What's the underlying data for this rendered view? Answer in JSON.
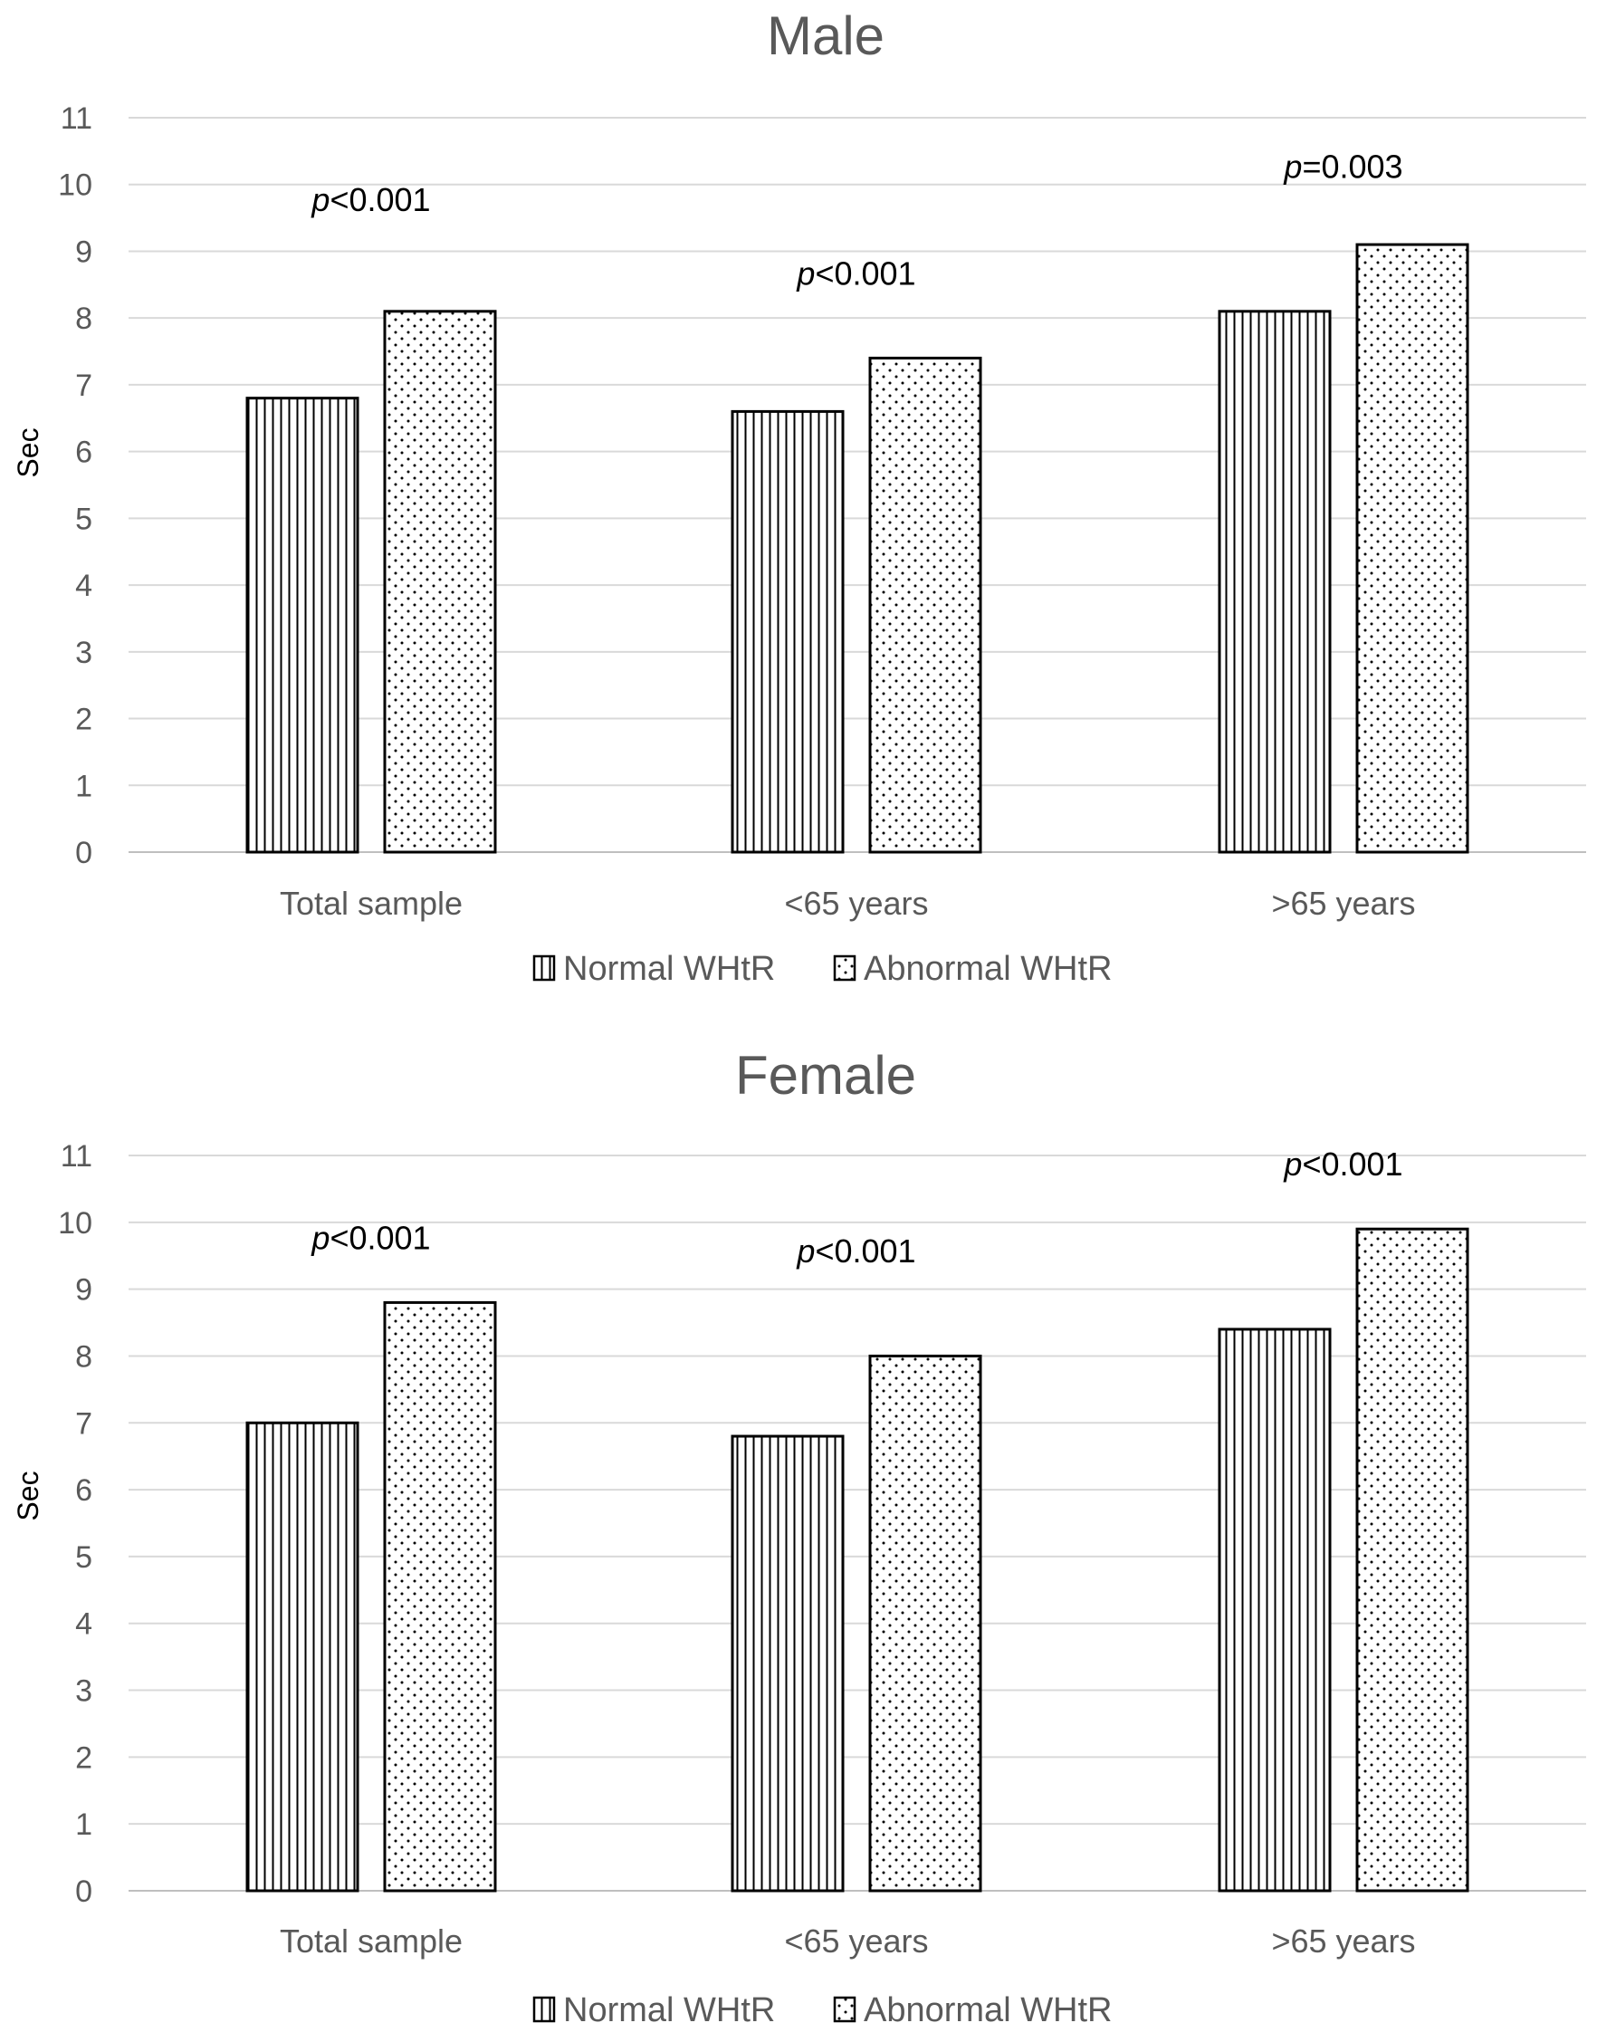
{
  "chart_data": [
    {
      "type": "bar",
      "title": "Male",
      "ylabel": "Sec",
      "xlabel": "",
      "ylim": [
        0,
        11
      ],
      "yticks": [
        0,
        1,
        2,
        3,
        4,
        5,
        6,
        7,
        8,
        9,
        10,
        11
      ],
      "grid": true,
      "legend_position": "bottom",
      "categories": [
        "Total sample",
        "<65 years",
        ">65 years"
      ],
      "series": [
        {
          "name": "Normal WHtR",
          "pattern": "vertical-lines",
          "values": [
            6.8,
            6.6,
            8.1
          ]
        },
        {
          "name": "Abnormal WHtR",
          "pattern": "dots",
          "values": [
            8.1,
            7.4,
            9.1
          ]
        }
      ],
      "annotations": [
        {
          "category": "Total sample",
          "italic": "p",
          "rest": "<0.001",
          "y": 9.6
        },
        {
          "category": "<65 years",
          "italic": "p",
          "rest": "<0.001",
          "y": 8.5
        },
        {
          "category": ">65 years",
          "italic": "p",
          "rest": "=0.003",
          "y": 10.1
        }
      ]
    },
    {
      "type": "bar",
      "title": "Female",
      "ylabel": "Sec",
      "xlabel": "",
      "ylim": [
        0,
        11
      ],
      "yticks": [
        0,
        1,
        2,
        3,
        4,
        5,
        6,
        7,
        8,
        9,
        10,
        11
      ],
      "grid": true,
      "legend_position": "bottom",
      "categories": [
        "Total sample",
        "<65 years",
        ">65 years"
      ],
      "series": [
        {
          "name": "Normal WHtR",
          "pattern": "vertical-lines",
          "values": [
            7.0,
            6.8,
            8.4
          ]
        },
        {
          "name": "Abnormal WHtR",
          "pattern": "dots",
          "values": [
            8.8,
            8.0,
            9.9
          ]
        }
      ],
      "annotations": [
        {
          "category": "Total sample",
          "italic": "p",
          "rest": "<0.001",
          "y": 9.6
        },
        {
          "category": "<65 years",
          "italic": "p",
          "rest": "<0.001",
          "y": 9.4
        },
        {
          "category": ">65 years",
          "italic": "p",
          "rest": "<0.001",
          "y": 10.7
        }
      ]
    }
  ],
  "colors": {
    "text": "#595959",
    "grid": "#d9d9d9",
    "bar_stroke": "#000000",
    "background": "#ffffff"
  }
}
